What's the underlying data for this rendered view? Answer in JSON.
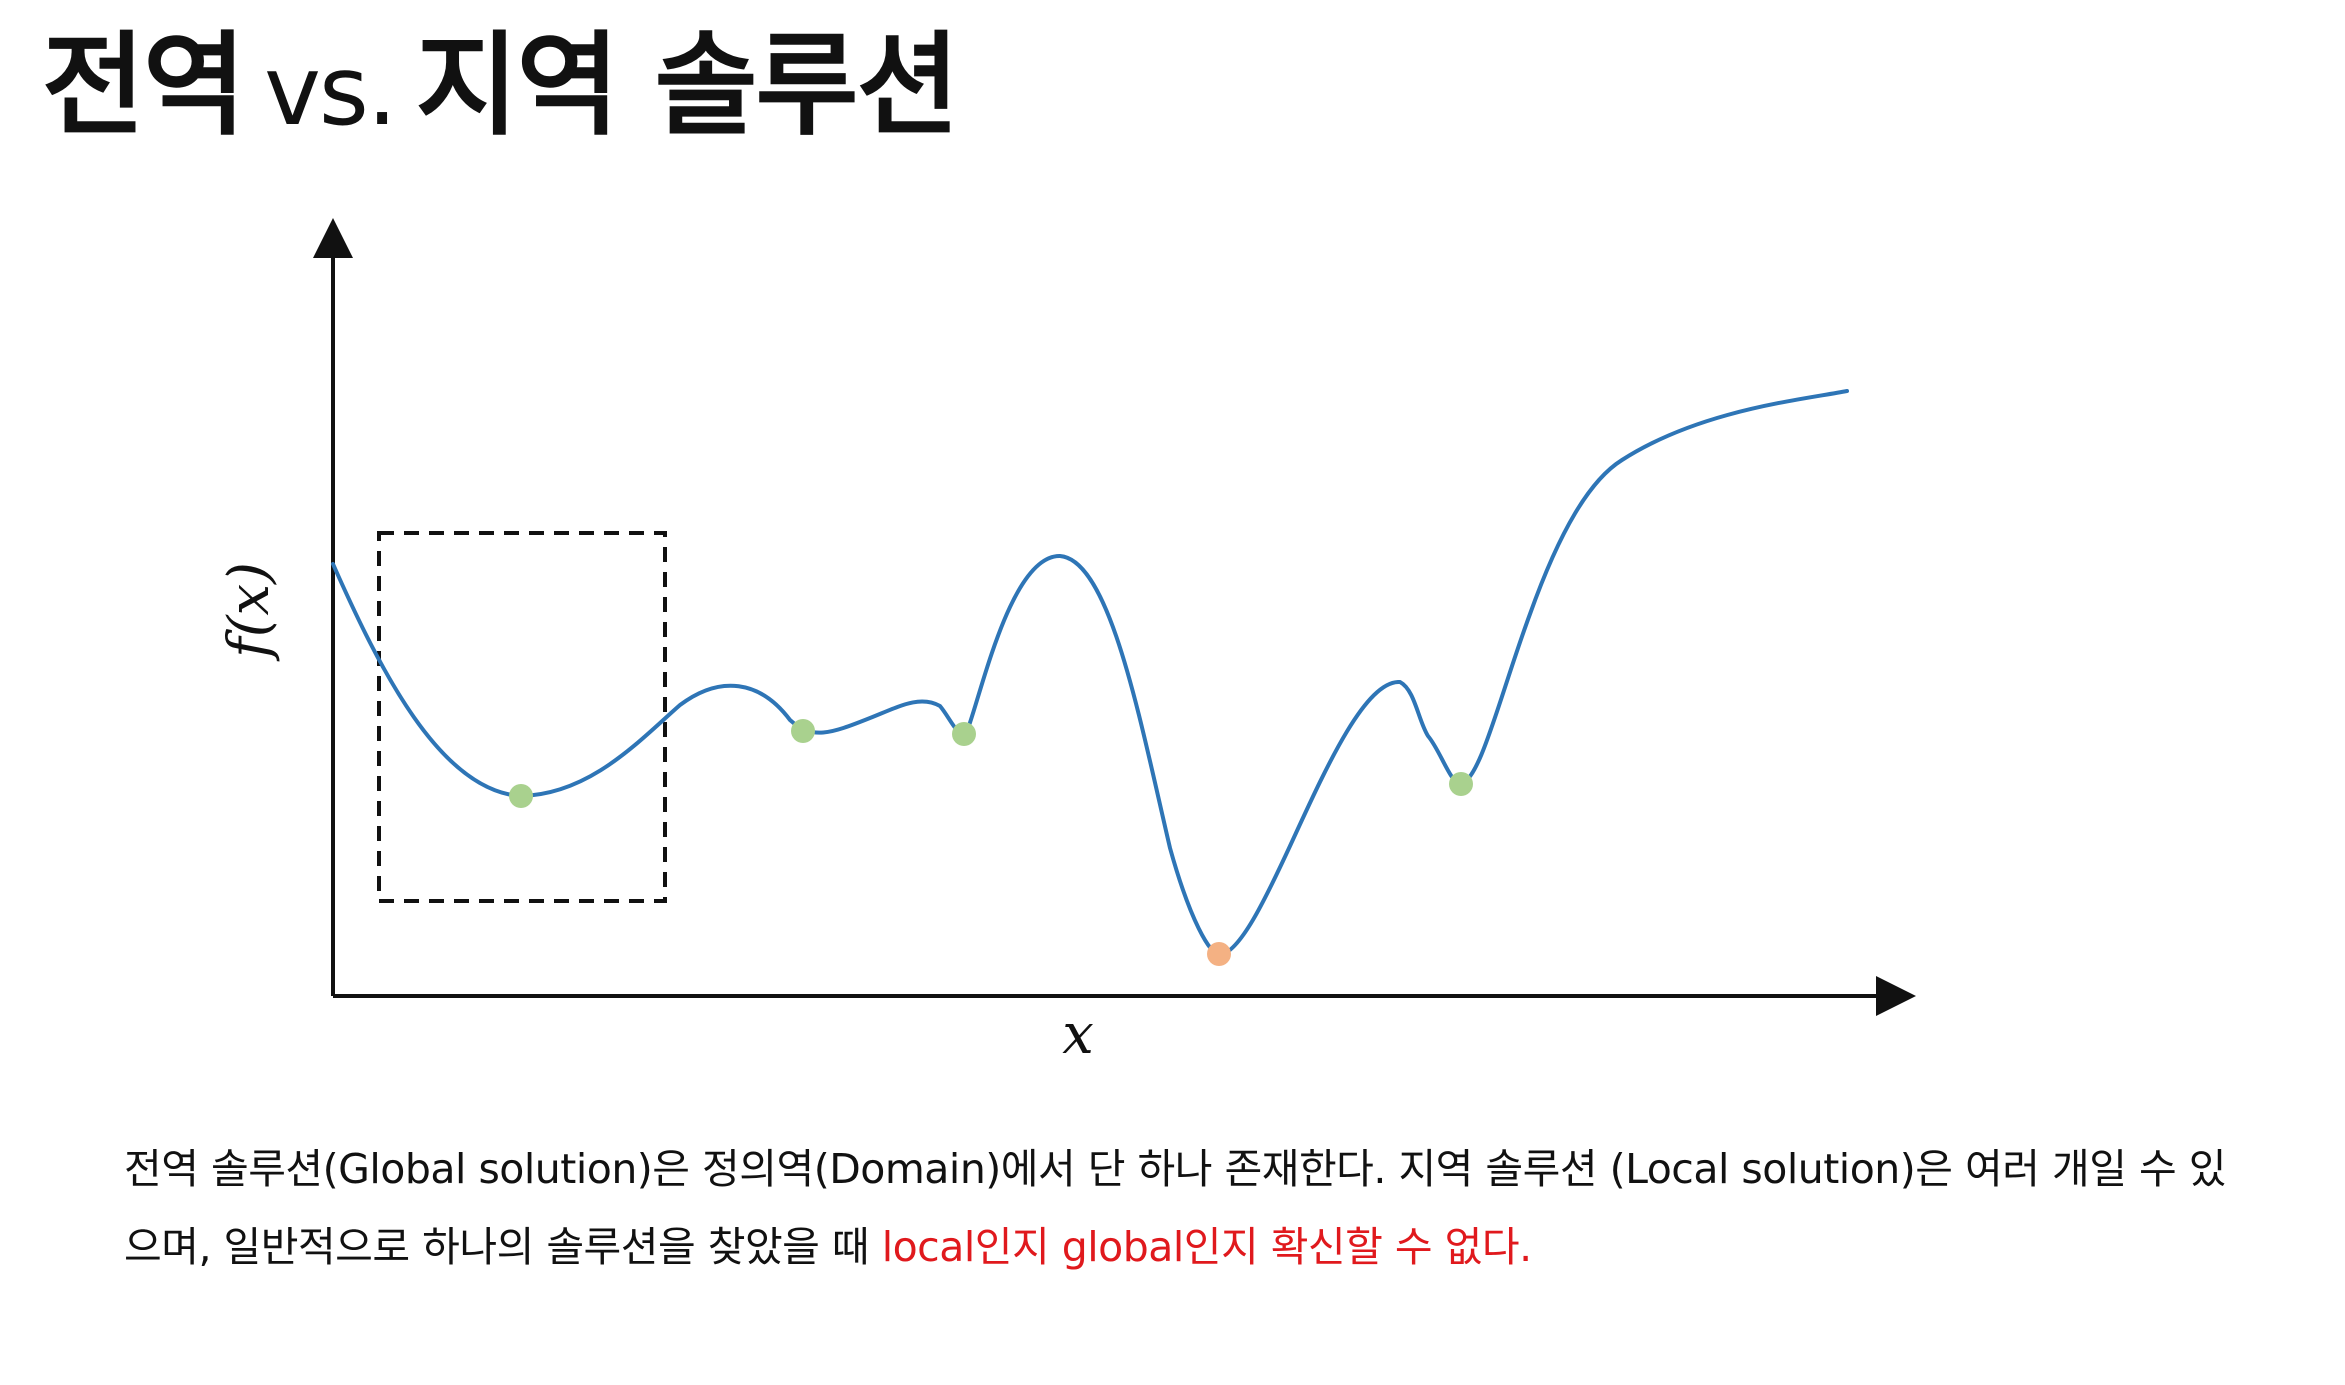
{
  "title": {
    "part1": "전역",
    "vs": "vs.",
    "part2": "지역 솔루션"
  },
  "figure": {
    "x_label": "x",
    "y_label": "f(x)",
    "curve_color": "#2e75b6",
    "local_minimum_color": "#a9d18e",
    "global_minimum_color": "#f4b183",
    "highlight_box_style": "dashed"
  },
  "caption": {
    "line_text": "전역 솔루션(Global solution)은 정의역(Domain)에서 단 하나 존재한다. 지역 솔루션 (Local solution)은 여러 개일 수 있으며, 일반적으로 하나의 솔루션을 찾았을 때 ",
    "emphasis": "local인지 global인지 확신할 수 없다."
  }
}
